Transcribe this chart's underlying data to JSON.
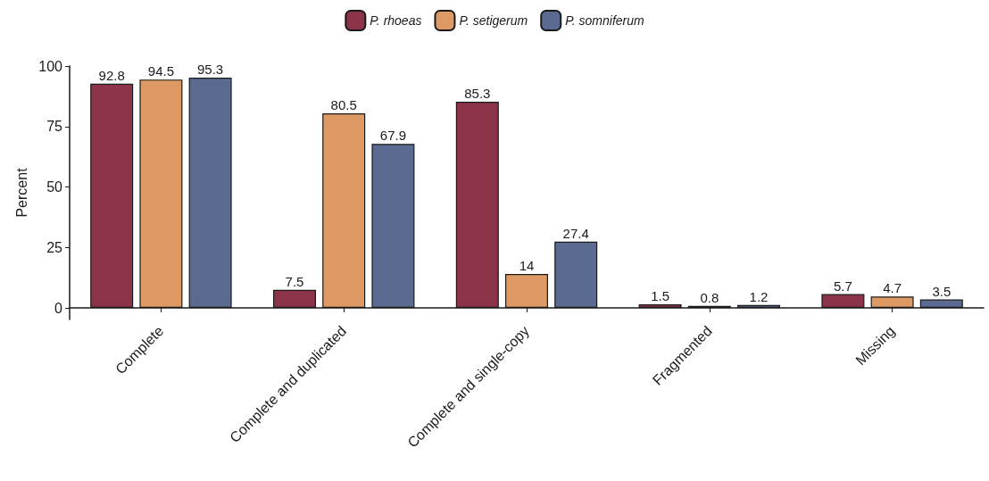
{
  "chart_data": {
    "type": "bar",
    "ylabel": "Percent",
    "categories": [
      "Complete",
      "Complete and duplicated",
      "Complete and single-copy",
      "Fragmented",
      "Missing"
    ],
    "series": [
      {
        "name": "P. rhoeas",
        "color": "#8b3349",
        "values": [
          92.8,
          7.5,
          85.3,
          1.5,
          5.7
        ]
      },
      {
        "name": "P. setigerum",
        "color": "#de9a64",
        "values": [
          94.5,
          80.5,
          14,
          0.8,
          4.7
        ]
      },
      {
        "name": "P. somniferum",
        "color": "#5b6a90",
        "values": [
          95.3,
          67.9,
          27.4,
          1.2,
          3.5
        ]
      }
    ],
    "ylim": [
      -4.8,
      100.1
    ],
    "yticks": [
      0,
      25,
      50,
      75,
      100
    ],
    "grid": false,
    "legend": "top",
    "data_labels": true
  }
}
